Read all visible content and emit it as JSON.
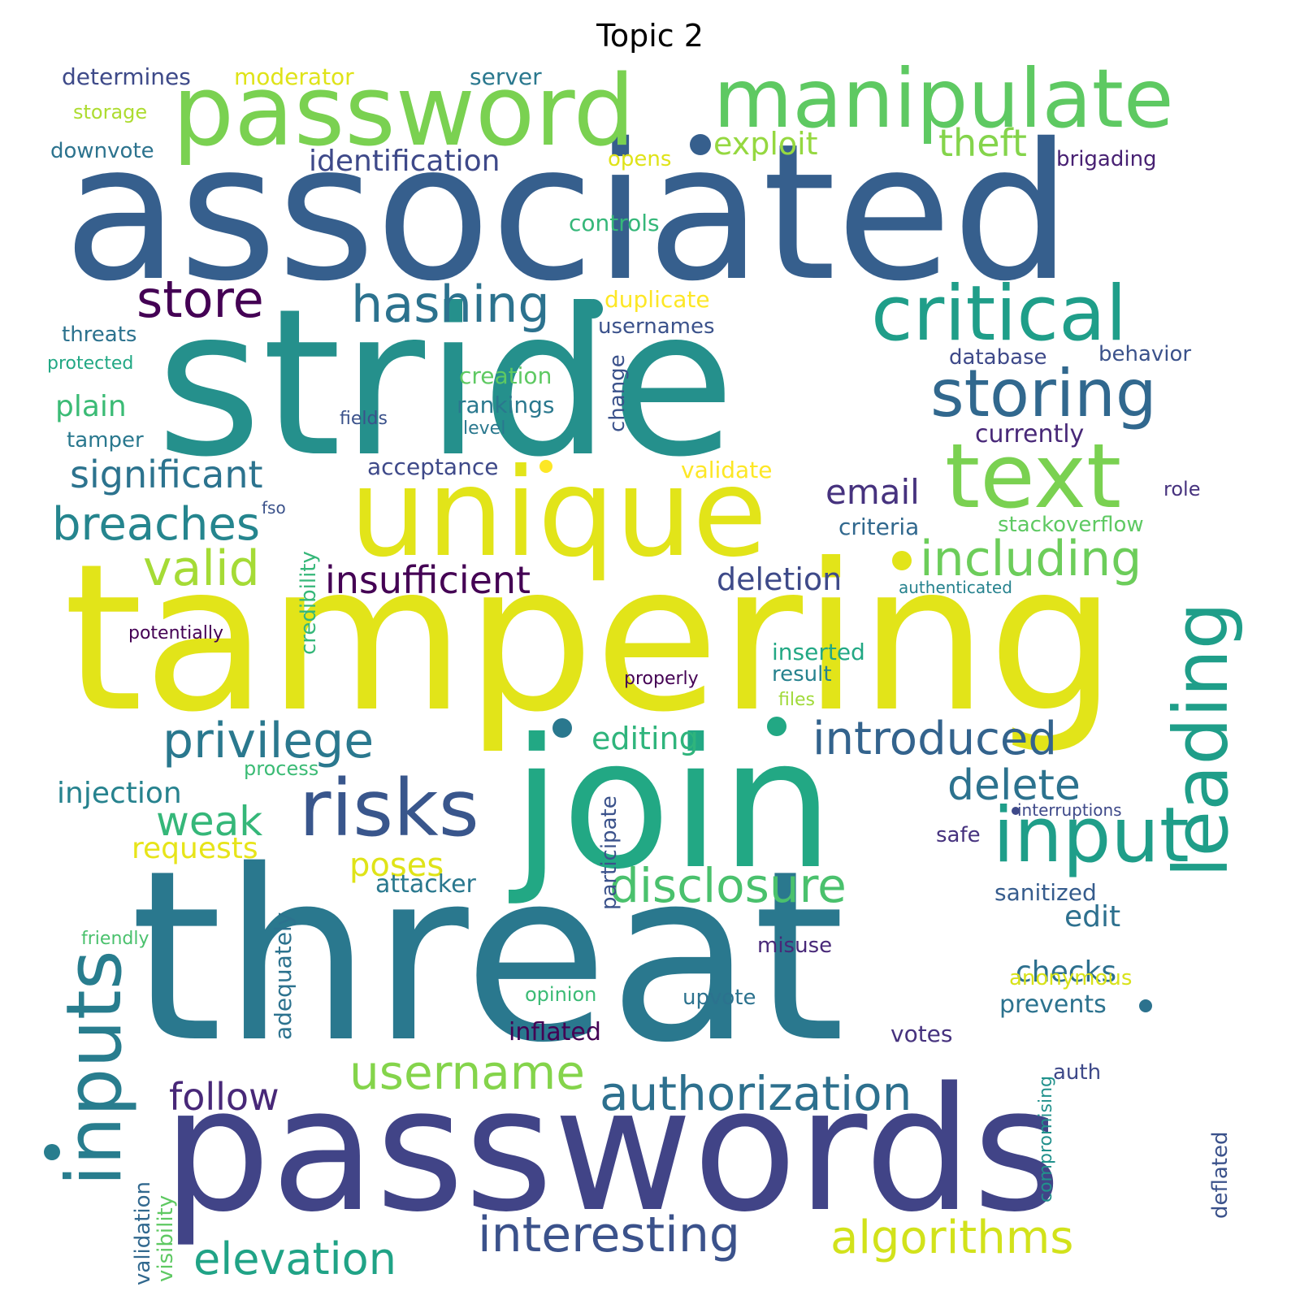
{
  "title": "Topic 2",
  "words": [
    {
      "text": "associated",
      "color": "#365f8d"
    },
    {
      "text": "stride",
      "color": "#25908c"
    },
    {
      "text": "tampering",
      "color": "#e2e419"
    },
    {
      "text": "threat",
      "color": "#2a788e"
    },
    {
      "text": "passwords",
      "color": "#414487"
    },
    {
      "text": "join",
      "color": "#22a884"
    },
    {
      "text": "unique",
      "color": "#e2e419"
    },
    {
      "text": "password",
      "color": "#7ad151"
    },
    {
      "text": "manipulate",
      "color": "#5ec962"
    },
    {
      "text": "critical",
      "color": "#1f9e89"
    },
    {
      "text": "storing",
      "color": "#31688e"
    },
    {
      "text": "text",
      "color": "#7ad151"
    },
    {
      "text": "input",
      "color": "#1f9e89"
    },
    {
      "text": "leading",
      "color": "#1f9e89"
    },
    {
      "text": "inputs",
      "color": "#287d8e"
    },
    {
      "text": "risks",
      "color": "#39568c"
    },
    {
      "text": "hashing",
      "color": "#2c728e"
    },
    {
      "text": "store",
      "color": "#440154"
    },
    {
      "text": "including",
      "color": "#6ccd5a"
    },
    {
      "text": "privilege",
      "color": "#2a788e"
    },
    {
      "text": "authorization",
      "color": "#2d708e"
    },
    {
      "text": "interesting",
      "color": "#3b528b"
    },
    {
      "text": "disclosure",
      "color": "#4ac16d"
    },
    {
      "text": "username",
      "color": "#84d44b"
    },
    {
      "text": "algorithms",
      "color": "#d2e21b"
    },
    {
      "text": "elevation",
      "color": "#20a386"
    },
    {
      "text": "introduced",
      "color": "#33638d"
    },
    {
      "text": "breaches",
      "color": "#25858e"
    },
    {
      "text": "significant",
      "color": "#2c738e"
    },
    {
      "text": "valid",
      "color": "#a5db36"
    },
    {
      "text": "insufficient",
      "color": "#440154"
    },
    {
      "text": "weak",
      "color": "#35b779"
    },
    {
      "text": "delete",
      "color": "#2c728e"
    },
    {
      "text": "follow",
      "color": "#482878"
    },
    {
      "text": "theft",
      "color": "#84d44b"
    },
    {
      "text": "exploit",
      "color": "#95d840"
    },
    {
      "text": "identification",
      "color": "#3e4989"
    },
    {
      "text": "email",
      "color": "#46327e"
    },
    {
      "text": "deletion",
      "color": "#3e4a89"
    },
    {
      "text": "poses",
      "color": "#dfe318"
    },
    {
      "text": "editing",
      "color": "#2fb47c"
    },
    {
      "text": "injection",
      "color": "#26828e"
    },
    {
      "text": "plain",
      "color": "#3bbb75"
    },
    {
      "text": "requests",
      "color": "#e7e419"
    },
    {
      "text": "checks",
      "color": "#2d708e"
    },
    {
      "text": "edit",
      "color": "#2d708e"
    },
    {
      "text": "attacker",
      "color": "#2a788e"
    },
    {
      "text": "determines",
      "color": "#3e4a89"
    },
    {
      "text": "moderator",
      "color": "#dfe318"
    },
    {
      "text": "server",
      "color": "#2a788e"
    },
    {
      "text": "storage",
      "color": "#addc30"
    },
    {
      "text": "downvote",
      "color": "#2c738e"
    },
    {
      "text": "opens",
      "color": "#dfe318"
    },
    {
      "text": "brigading",
      "color": "#482173"
    },
    {
      "text": "controls",
      "color": "#35b779"
    },
    {
      "text": "duplicate",
      "color": "#fde725"
    },
    {
      "text": "usernames",
      "color": "#3b528b"
    },
    {
      "text": "threats",
      "color": "#2c728e"
    },
    {
      "text": "protected",
      "color": "#22a884"
    },
    {
      "text": "database",
      "color": "#3e4989"
    },
    {
      "text": "behavior",
      "color": "#3b528b"
    },
    {
      "text": "creation",
      "color": "#5ec962"
    },
    {
      "text": "rankings",
      "color": "#2a788e"
    },
    {
      "text": "change",
      "color": "#3b528b"
    },
    {
      "text": "fields",
      "color": "#3b528b"
    },
    {
      "text": "level",
      "color": "#2a788e"
    },
    {
      "text": "currently",
      "color": "#482878"
    },
    {
      "text": "tamper",
      "color": "#2a788e"
    },
    {
      "text": "acceptance",
      "color": "#3e4989"
    },
    {
      "text": "validate",
      "color": "#fde725"
    },
    {
      "text": "role",
      "color": "#46327e"
    },
    {
      "text": "fso",
      "color": "#3b528b"
    },
    {
      "text": "stackoverflow",
      "color": "#5ec962"
    },
    {
      "text": "criteria",
      "color": "#31688e"
    },
    {
      "text": "credibility",
      "color": "#35b779"
    },
    {
      "text": "authenticated",
      "color": "#26828e"
    },
    {
      "text": "potentially",
      "color": "#440154"
    },
    {
      "text": "inserted",
      "color": "#22a884"
    },
    {
      "text": "result",
      "color": "#26828e"
    },
    {
      "text": "properly",
      "color": "#440154"
    },
    {
      "text": "files",
      "color": "#a0da39"
    },
    {
      "text": "process",
      "color": "#3bbb75"
    },
    {
      "text": "participate",
      "color": "#3b528b"
    },
    {
      "text": "interruptions",
      "color": "#3e4989"
    },
    {
      "text": "safe",
      "color": "#46327e"
    },
    {
      "text": "adequately",
      "color": "#2c728e"
    },
    {
      "text": "sanitized",
      "color": "#365c8d"
    },
    {
      "text": "friendly",
      "color": "#4ac16d"
    },
    {
      "text": "misuse",
      "color": "#482878"
    },
    {
      "text": "anonymous",
      "color": "#d8e219"
    },
    {
      "text": "opinion",
      "color": "#3bbb75"
    },
    {
      "text": "upvote",
      "color": "#2c728e"
    },
    {
      "text": "prevents",
      "color": "#2c728e"
    },
    {
      "text": "inflated",
      "color": "#440154"
    },
    {
      "text": "votes",
      "color": "#46327e"
    },
    {
      "text": "validation",
      "color": "#31688e"
    },
    {
      "text": "visibility",
      "color": "#5ec962"
    },
    {
      "text": "compromising",
      "color": "#21918c"
    },
    {
      "text": "auth",
      "color": "#3e4989"
    },
    {
      "text": "deflated",
      "color": "#3b528b"
    }
  ]
}
